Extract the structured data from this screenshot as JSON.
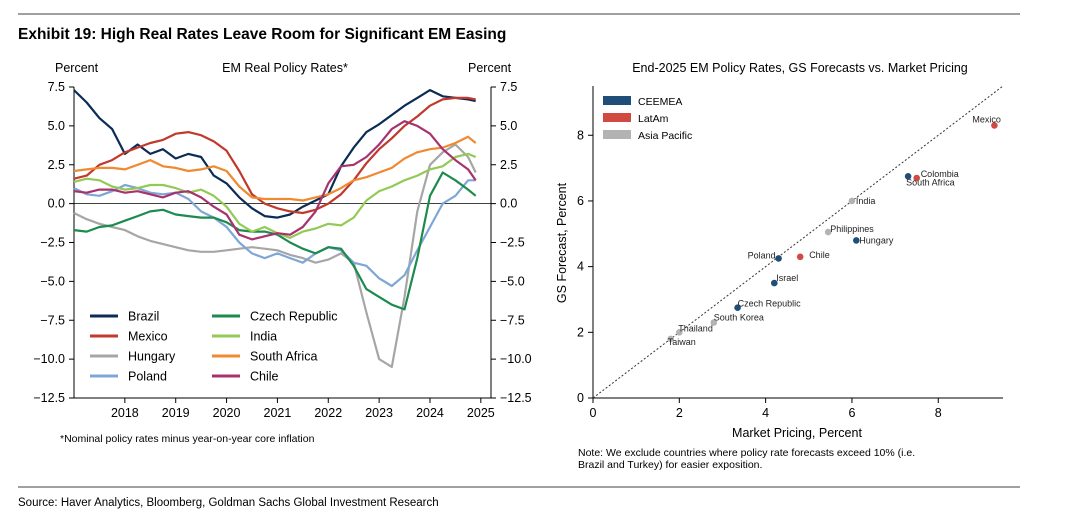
{
  "exhibit": {
    "title": "Exhibit 19: High Real Rates Leave Room for Significant EM Easing",
    "source": "Source: Haver Analytics, Bloomberg, Goldman Sachs Global Investment Research"
  },
  "left_chart": {
    "title": "EM Real Policy Rates*",
    "ylabel_left": "Percent",
    "ylabel_right": "Percent",
    "footnote": "*Nominal policy rates minus year-on-year core inflation"
  },
  "right_chart": {
    "title": "End-2025 EM Policy Rates, GS Forecasts vs. Market Pricing",
    "xlabel": "Market Pricing, Percent",
    "ylabel": "GS Forecast, Percent",
    "note_lines": [
      "Note: We exclude countries where policy rate forecasts exceed 10% (i.e.",
      "Brazil and Turkey) for easier exposition."
    ]
  },
  "chart_data": [
    {
      "type": "line",
      "title": "EM Real Policy Rates*",
      "xlabel": "",
      "ylabel": "Percent",
      "xlim": [
        2017.0,
        2025.2
      ],
      "ylim": [
        -12.5,
        7.5
      ],
      "yticks": [
        7.5,
        5.0,
        2.5,
        0.0,
        -2.5,
        -5.0,
        -7.5,
        -10.0,
        -12.5
      ],
      "ytick_labels": [
        "7.5",
        "5.0",
        "2.5",
        "0.0",
        "−2.5",
        "−5.0",
        "−7.5",
        "−10.0",
        "−12.5"
      ],
      "xticks": [
        2018,
        2019,
        2020,
        2021,
        2022,
        2023,
        2024,
        2025
      ],
      "xtick_labels": [
        "2018",
        "2019",
        "2020",
        "2021",
        "2022",
        "2023",
        "2024",
        "2025"
      ],
      "series": [
        {
          "name": "Brazil",
          "color": "#0b2c55",
          "x": [
            2017.0,
            2017.25,
            2017.5,
            2017.75,
            2018.0,
            2018.25,
            2018.5,
            2018.75,
            2019.0,
            2019.25,
            2019.5,
            2019.75,
            2020.0,
            2020.25,
            2020.5,
            2020.75,
            2021.0,
            2021.25,
            2021.5,
            2021.75,
            2022.0,
            2022.25,
            2022.5,
            2022.75,
            2023.0,
            2023.25,
            2023.5,
            2023.75,
            2024.0,
            2024.25,
            2024.5,
            2024.75,
            2024.9
          ],
          "values": [
            7.3,
            6.5,
            5.5,
            4.8,
            3.2,
            3.8,
            3.2,
            3.5,
            2.9,
            3.2,
            3.0,
            1.8,
            1.3,
            0.4,
            -0.3,
            -0.8,
            -0.9,
            -0.7,
            -0.2,
            0.2,
            0.6,
            2.4,
            3.6,
            4.6,
            5.1,
            5.7,
            6.3,
            6.8,
            7.3,
            6.9,
            6.8,
            6.7,
            6.6
          ]
        },
        {
          "name": "Mexico",
          "color": "#c0392b",
          "x": [
            2017.0,
            2017.25,
            2017.5,
            2017.75,
            2018.0,
            2018.25,
            2018.5,
            2018.75,
            2019.0,
            2019.25,
            2019.5,
            2019.75,
            2020.0,
            2020.25,
            2020.5,
            2020.75,
            2021.0,
            2021.25,
            2021.5,
            2021.75,
            2022.0,
            2022.25,
            2022.5,
            2022.75,
            2023.0,
            2023.25,
            2023.5,
            2023.75,
            2024.0,
            2024.25,
            2024.5,
            2024.75,
            2024.9
          ],
          "values": [
            1.6,
            1.8,
            2.5,
            2.8,
            3.3,
            3.6,
            3.9,
            4.1,
            4.5,
            4.6,
            4.4,
            4.0,
            3.4,
            2.1,
            0.6,
            0.0,
            -0.3,
            -0.5,
            -0.6,
            -0.4,
            0.0,
            0.6,
            1.5,
            2.6,
            3.5,
            4.2,
            5.0,
            5.6,
            6.3,
            6.7,
            6.8,
            6.8,
            6.7
          ]
        },
        {
          "name": "Hungary",
          "color": "#a6a6a6",
          "x": [
            2017.0,
            2017.25,
            2017.5,
            2017.75,
            2018.0,
            2018.25,
            2018.5,
            2018.75,
            2019.0,
            2019.25,
            2019.5,
            2019.75,
            2020.0,
            2020.25,
            2020.5,
            2020.75,
            2021.0,
            2021.25,
            2021.5,
            2021.75,
            2022.0,
            2022.25,
            2022.5,
            2022.75,
            2023.0,
            2023.25,
            2023.5,
            2023.75,
            2024.0,
            2024.25,
            2024.5,
            2024.75,
            2024.9
          ],
          "values": [
            -0.6,
            -1.0,
            -1.3,
            -1.5,
            -1.7,
            -2.1,
            -2.4,
            -2.6,
            -2.8,
            -3.0,
            -3.1,
            -3.1,
            -3.0,
            -2.9,
            -2.8,
            -2.9,
            -3.0,
            -3.3,
            -3.5,
            -3.8,
            -3.6,
            -3.2,
            -3.8,
            -7.0,
            -10.0,
            -10.5,
            -6.0,
            -0.5,
            2.5,
            3.3,
            3.8,
            3.0,
            2.0
          ]
        },
        {
          "name": "Poland",
          "color": "#7ea6d6",
          "x": [
            2017.0,
            2017.25,
            2017.5,
            2017.75,
            2018.0,
            2018.25,
            2018.5,
            2018.75,
            2019.0,
            2019.25,
            2019.5,
            2019.75,
            2020.0,
            2020.25,
            2020.5,
            2020.75,
            2021.0,
            2021.25,
            2021.5,
            2021.75,
            2022.0,
            2022.25,
            2022.5,
            2022.75,
            2023.0,
            2023.25,
            2023.5,
            2023.75,
            2024.0,
            2024.25,
            2024.5,
            2024.75,
            2024.9
          ],
          "values": [
            1.0,
            0.6,
            0.5,
            0.8,
            1.2,
            1.0,
            0.7,
            0.6,
            0.7,
            0.3,
            -0.5,
            -0.9,
            -1.5,
            -2.5,
            -3.2,
            -3.5,
            -3.2,
            -3.5,
            -3.8,
            -3.2,
            -2.8,
            -3.0,
            -3.8,
            -4.0,
            -4.8,
            -5.3,
            -4.6,
            -3.0,
            -1.5,
            0.0,
            0.5,
            1.5,
            1.5
          ]
        },
        {
          "name": "Czech Republic",
          "color": "#1d8a4e",
          "x": [
            2017.0,
            2017.25,
            2017.5,
            2017.75,
            2018.0,
            2018.25,
            2018.5,
            2018.75,
            2019.0,
            2019.25,
            2019.5,
            2019.75,
            2020.0,
            2020.25,
            2020.5,
            2020.75,
            2021.0,
            2021.25,
            2021.5,
            2021.75,
            2022.0,
            2022.25,
            2022.5,
            2022.75,
            2023.0,
            2023.25,
            2023.5,
            2023.75,
            2024.0,
            2024.25,
            2024.5,
            2024.75,
            2024.9
          ],
          "values": [
            -1.7,
            -1.8,
            -1.5,
            -1.4,
            -1.1,
            -0.8,
            -0.5,
            -0.4,
            -0.7,
            -0.8,
            -0.9,
            -0.9,
            -1.2,
            -1.7,
            -1.8,
            -1.8,
            -2.0,
            -2.5,
            -2.9,
            -3.2,
            -2.8,
            -2.9,
            -4.0,
            -5.5,
            -6.0,
            -6.5,
            -6.8,
            -3.5,
            0.5,
            2.0,
            1.5,
            0.9,
            0.5
          ]
        },
        {
          "name": "India",
          "color": "#93c955",
          "x": [
            2017.0,
            2017.25,
            2017.5,
            2017.75,
            2018.0,
            2018.25,
            2018.5,
            2018.75,
            2019.0,
            2019.25,
            2019.5,
            2019.75,
            2020.0,
            2020.25,
            2020.5,
            2020.75,
            2021.0,
            2021.25,
            2021.5,
            2021.75,
            2022.0,
            2022.25,
            2022.5,
            2022.75,
            2023.0,
            2023.25,
            2023.5,
            2023.75,
            2024.0,
            2024.25,
            2024.5,
            2024.75,
            2024.9
          ],
          "values": [
            1.4,
            1.6,
            1.5,
            1.1,
            0.9,
            1.0,
            1.2,
            1.2,
            1.0,
            0.7,
            0.9,
            0.5,
            -0.2,
            -1.3,
            -1.8,
            -1.5,
            -1.9,
            -2.2,
            -1.8,
            -1.6,
            -1.3,
            -1.4,
            -0.9,
            0.2,
            0.8,
            1.1,
            1.5,
            1.8,
            2.2,
            2.4,
            3.0,
            3.2,
            3.0
          ]
        },
        {
          "name": "South Africa",
          "color": "#f0892f",
          "x": [
            2017.0,
            2017.25,
            2017.5,
            2017.75,
            2018.0,
            2018.25,
            2018.5,
            2018.75,
            2019.0,
            2019.25,
            2019.5,
            2019.75,
            2020.0,
            2020.25,
            2020.5,
            2020.75,
            2021.0,
            2021.25,
            2021.5,
            2021.75,
            2022.0,
            2022.25,
            2022.5,
            2022.75,
            2023.0,
            2023.25,
            2023.5,
            2023.75,
            2024.0,
            2024.25,
            2024.5,
            2024.75,
            2024.9
          ],
          "values": [
            2.1,
            2.2,
            2.3,
            2.3,
            2.2,
            2.5,
            2.8,
            2.4,
            2.3,
            2.1,
            2.2,
            2.4,
            2.1,
            1.1,
            0.4,
            0.3,
            0.3,
            0.3,
            0.2,
            0.4,
            0.6,
            1.0,
            1.5,
            1.7,
            2.0,
            2.3,
            2.9,
            3.3,
            3.5,
            3.6,
            3.9,
            4.3,
            3.9
          ]
        },
        {
          "name": "Chile",
          "color": "#a8326e",
          "x": [
            2017.0,
            2017.25,
            2017.5,
            2017.75,
            2018.0,
            2018.25,
            2018.5,
            2018.75,
            2019.0,
            2019.25,
            2019.5,
            2019.75,
            2020.0,
            2020.25,
            2020.5,
            2020.75,
            2021.0,
            2021.25,
            2021.5,
            2021.75,
            2022.0,
            2022.25,
            2022.5,
            2022.75,
            2023.0,
            2023.25,
            2023.5,
            2023.75,
            2024.0,
            2024.25,
            2024.5,
            2024.75,
            2024.9
          ],
          "values": [
            0.8,
            0.7,
            0.9,
            0.9,
            0.7,
            0.8,
            0.6,
            0.4,
            0.7,
            0.8,
            0.4,
            -0.2,
            -0.7,
            -2.0,
            -2.3,
            -2.1,
            -1.9,
            -2.0,
            -1.5,
            -0.5,
            1.3,
            2.4,
            2.5,
            3.0,
            3.8,
            4.8,
            5.3,
            5.0,
            4.5,
            3.5,
            2.8,
            2.2,
            1.5
          ]
        }
      ]
    },
    {
      "type": "scatter",
      "title": "End-2025 EM Policy Rates, GS Forecasts vs. Market Pricing",
      "xlabel": "Market Pricing, Percent",
      "ylabel": "GS Forecast, Percent",
      "xlim": [
        0,
        9.5
      ],
      "ylim": [
        0,
        9.5
      ],
      "xticks": [
        0,
        2,
        4,
        6,
        8
      ],
      "yticks": [
        0,
        2,
        4,
        6,
        8
      ],
      "reference_line": "y = x (dotted)",
      "legend": [
        {
          "name": "CEEMEA",
          "color": "#1f4e79"
        },
        {
          "name": "LatAm",
          "color": "#d04a43"
        },
        {
          "name": "Asia Pacific",
          "color": "#b3b3b3"
        }
      ],
      "points": [
        {
          "label": "Mexico",
          "group": "LatAm",
          "x": 9.3,
          "y": 8.3
        },
        {
          "label": "Colombia",
          "group": "LatAm",
          "x": 7.5,
          "y": 6.7
        },
        {
          "label": "South Africa",
          "group": "CEEMEA",
          "x": 7.3,
          "y": 6.75
        },
        {
          "label": "India",
          "group": "Asia Pacific",
          "x": 6.0,
          "y": 6.0
        },
        {
          "label": "Philippines",
          "group": "Asia Pacific",
          "x": 5.45,
          "y": 5.05
        },
        {
          "label": "Hungary",
          "group": "CEEMEA",
          "x": 6.1,
          "y": 4.8
        },
        {
          "label": "Poland",
          "group": "CEEMEA",
          "x": 4.3,
          "y": 4.25
        },
        {
          "label": "Chile",
          "group": "LatAm",
          "x": 4.8,
          "y": 4.3
        },
        {
          "label": "Israel",
          "group": "CEEMEA",
          "x": 4.2,
          "y": 3.5
        },
        {
          "label": "Czech Republic",
          "group": "CEEMEA",
          "x": 3.35,
          "y": 2.75
        },
        {
          "label": "South Korea",
          "group": "Asia Pacific",
          "x": 2.8,
          "y": 2.3
        },
        {
          "label": "Thailand",
          "group": "Asia Pacific",
          "x": 2.0,
          "y": 2.0
        },
        {
          "label": "Taiwan",
          "group": "Asia Pacific",
          "x": 1.8,
          "y": 1.8
        }
      ]
    }
  ]
}
